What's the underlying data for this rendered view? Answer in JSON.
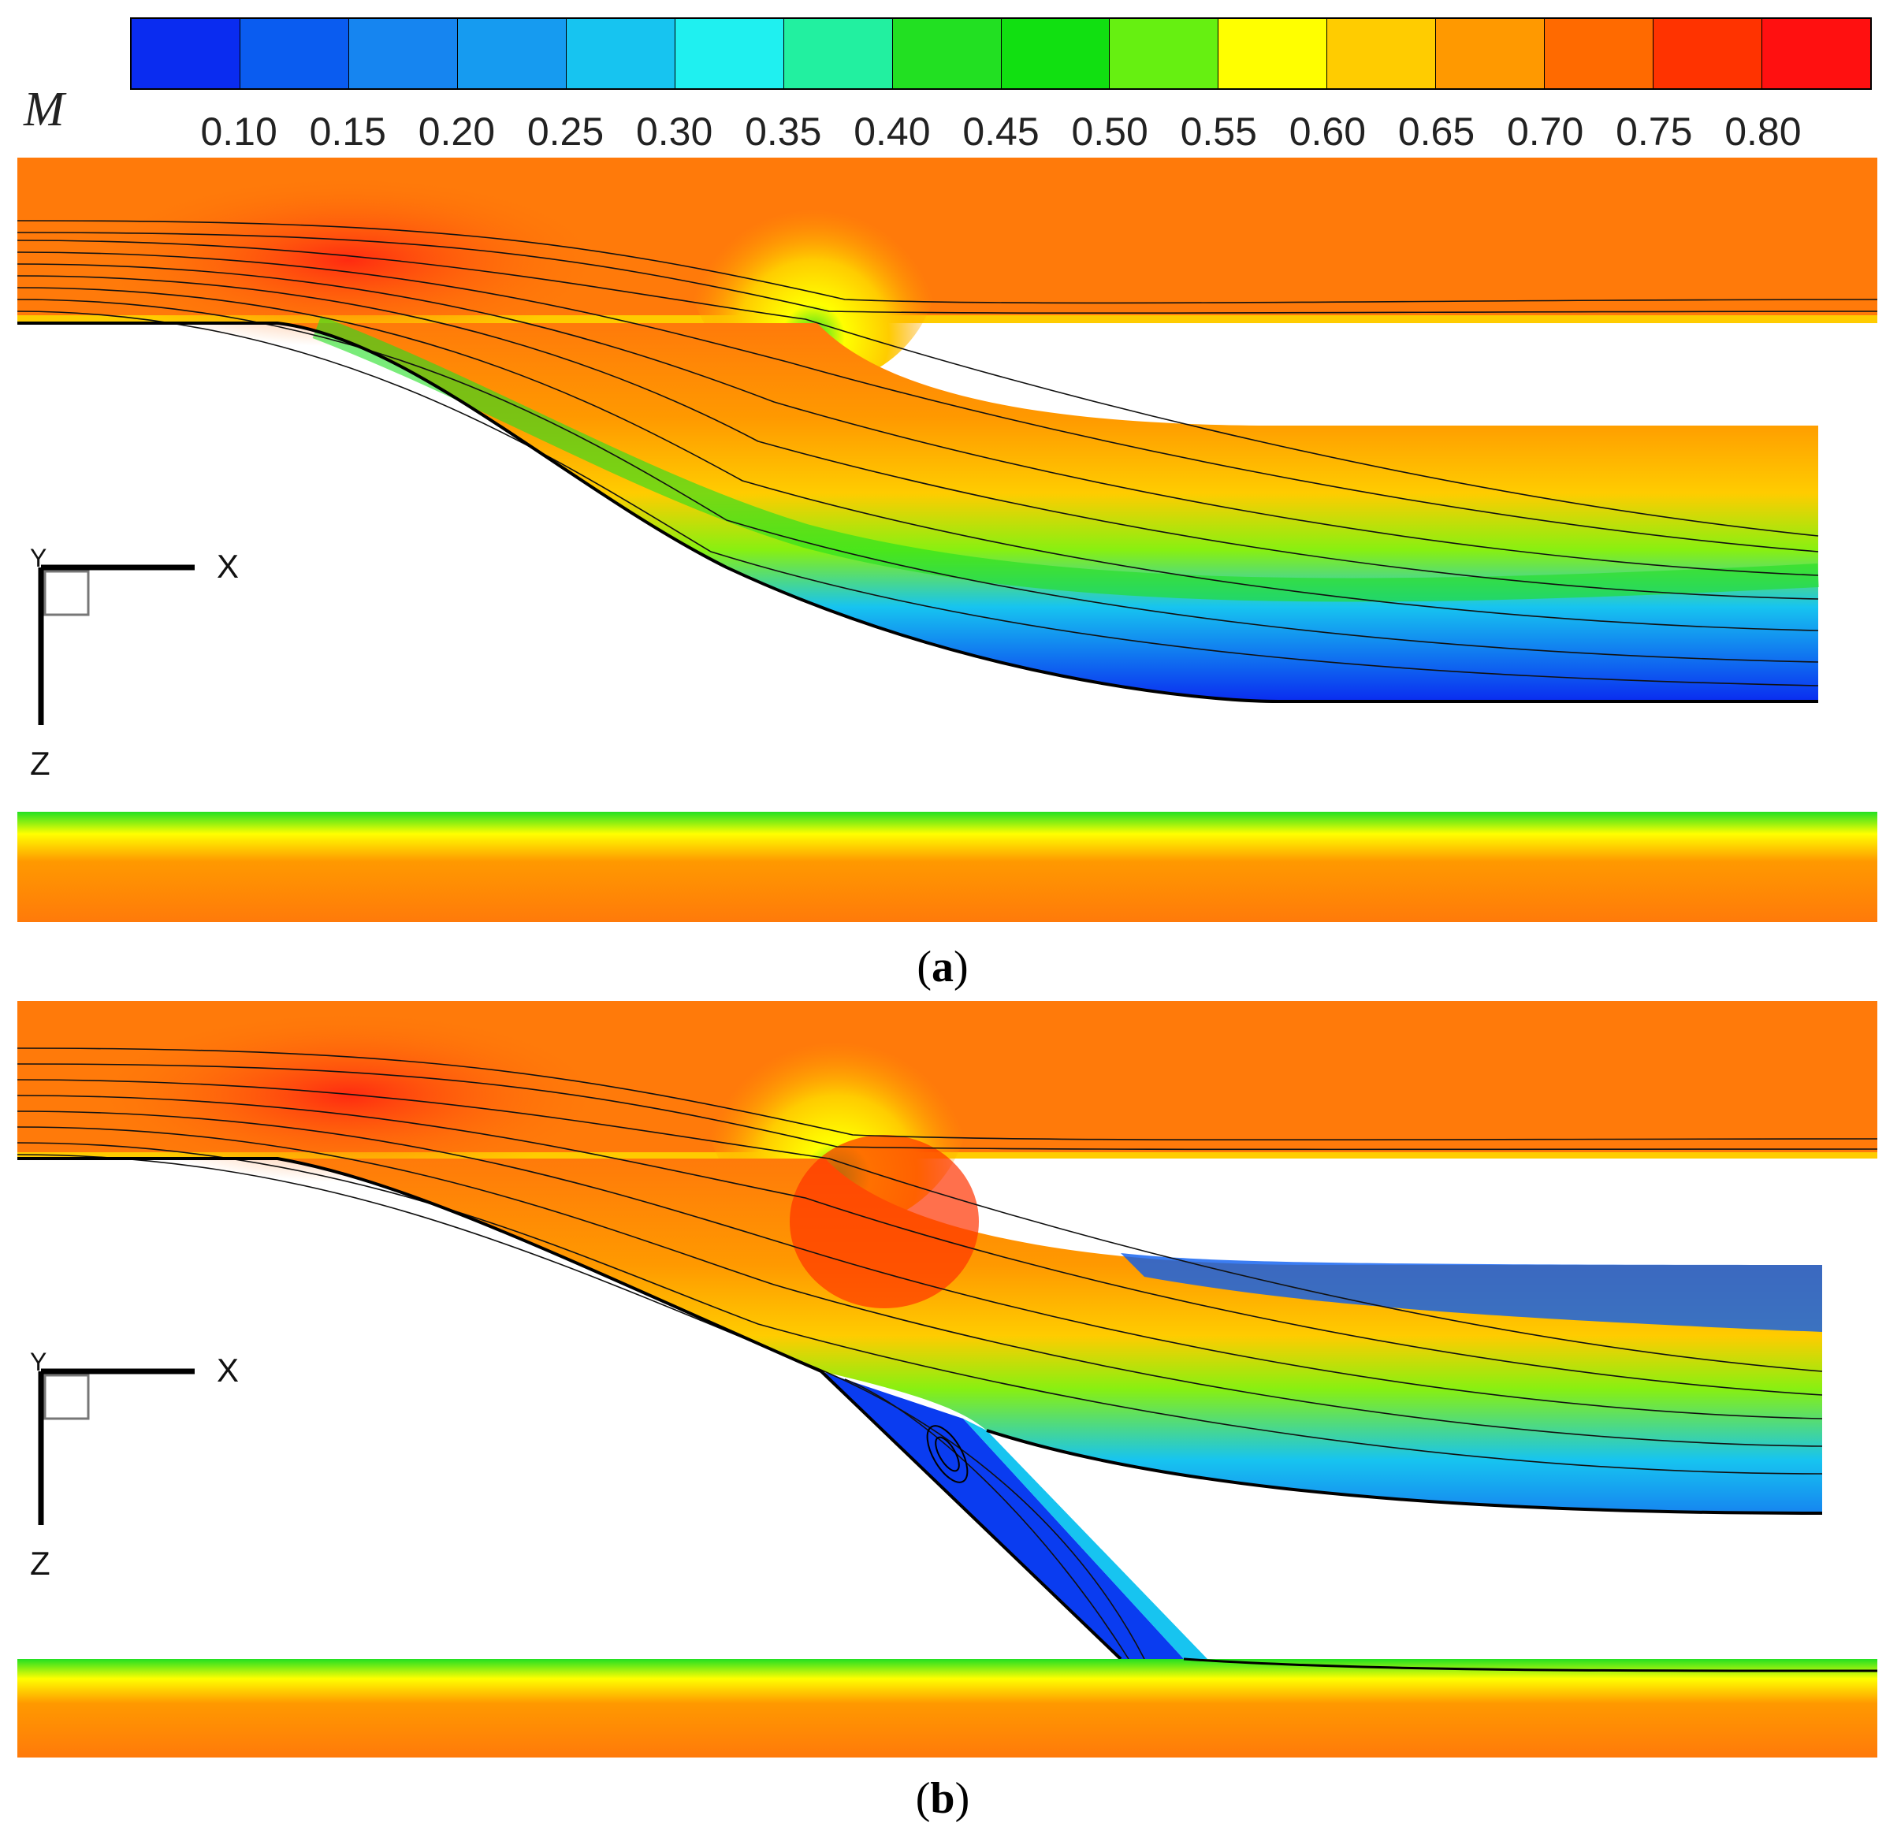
{
  "legend": {
    "symbol": "M",
    "ticks": [
      "0.10",
      "0.15",
      "0.20",
      "0.25",
      "0.30",
      "0.35",
      "0.40",
      "0.45",
      "0.50",
      "0.55",
      "0.60",
      "0.65",
      "0.70",
      "0.75",
      "0.80"
    ],
    "swatches": [
      "#0a2cf0",
      "#0a5cf0",
      "#1685f0",
      "#169bf0",
      "#17c4f0",
      "#1ff0f0",
      "#22f0a0",
      "#22e022",
      "#11e011",
      "#66f011",
      "#ffff00",
      "#ffcc00",
      "#ff9900",
      "#ff6a00",
      "#ff3300",
      "#ff1010"
    ]
  },
  "panels": [
    {
      "caption_open": "(",
      "caption_letter": "a",
      "caption_close": ")",
      "axis_x": "X",
      "axis_y": "Y",
      "axis_z": "Z"
    },
    {
      "caption_open": "(",
      "caption_letter": "b",
      "caption_close": ")",
      "axis_x": "X",
      "axis_y": "Y",
      "axis_z": "Z"
    }
  ],
  "colors": {
    "field_base": "#ff7a0a",
    "high": "#ff4a14",
    "mid": "#ffc000",
    "low": "#17c4f0",
    "very_low": "#0a3cf0"
  }
}
